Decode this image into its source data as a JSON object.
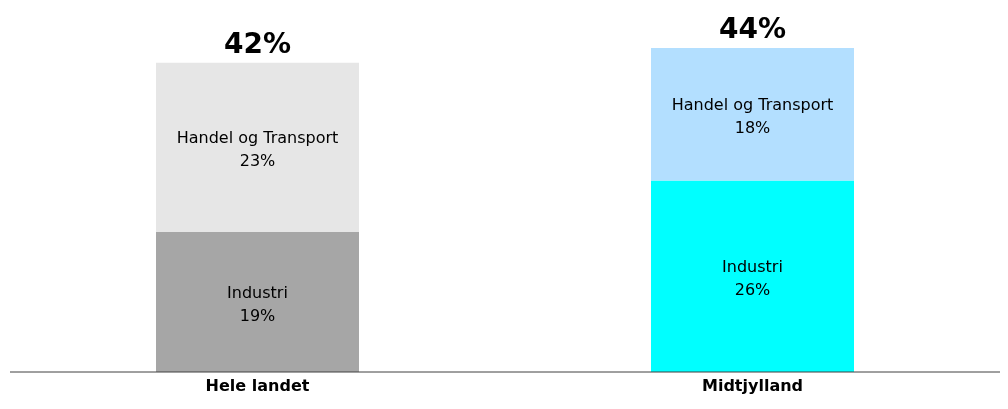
{
  "chart_data": {
    "type": "bar",
    "stacked": true,
    "categories": [
      "Hele landet",
      "Midtjylland"
    ],
    "series": [
      {
        "name": "Industri",
        "colors": [
          "#a6a6a6",
          "#00ffff"
        ],
        "values": [
          19,
          26
        ],
        "value_labels": [
          "19%",
          "26%"
        ]
      },
      {
        "name": "Handel og Transport",
        "colors": [
          "#e6e6e6",
          "#b3dfff"
        ],
        "values": [
          23,
          18
        ],
        "value_labels": [
          "23%",
          "18%"
        ]
      }
    ],
    "totals": [
      "42%",
      "44%"
    ]
  }
}
